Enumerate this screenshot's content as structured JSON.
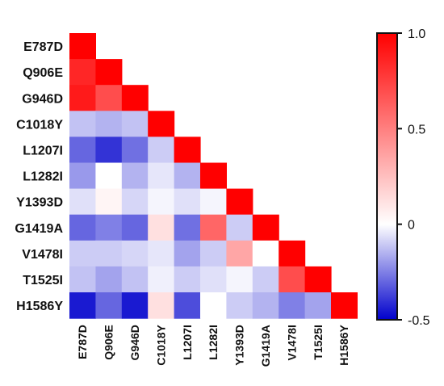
{
  "chart_data": {
    "type": "heatmap",
    "layout": "lower-triangle correlation matrix",
    "title": "",
    "xlabel": "",
    "ylabel": "",
    "labels": [
      "E787D",
      "Q906E",
      "G946D",
      "C1018Y",
      "L1207I",
      "L1282I",
      "Y1393D",
      "G1419A",
      "V1478I",
      "T1525I",
      "H1586Y"
    ],
    "values": [
      [
        1.0
      ],
      [
        0.85,
        1.0
      ],
      [
        0.9,
        0.7,
        1.0
      ],
      [
        -0.12,
        -0.15,
        -0.12,
        1.0
      ],
      [
        -0.3,
        -0.4,
        -0.28,
        -0.1,
        1.0
      ],
      [
        -0.2,
        0.0,
        -0.15,
        -0.05,
        -0.15,
        1.0
      ],
      [
        -0.06,
        0.04,
        -0.08,
        -0.02,
        -0.06,
        -0.02,
        1.0
      ],
      [
        -0.3,
        -0.25,
        -0.3,
        0.12,
        -0.28,
        0.6,
        -0.1,
        1.0
      ],
      [
        -0.1,
        -0.1,
        -0.08,
        -0.05,
        -0.18,
        -0.1,
        0.35,
        0.0,
        1.0
      ],
      [
        -0.12,
        -0.18,
        -0.12,
        -0.03,
        -0.1,
        -0.06,
        -0.02,
        -0.1,
        0.7,
        1.0
      ],
      [
        -0.45,
        -0.3,
        -0.45,
        0.12,
        -0.35,
        0.0,
        -0.1,
        -0.15,
        -0.25,
        -0.18,
        1.0
      ]
    ],
    "colorbar": {
      "min": -0.5,
      "max": 1.0,
      "ticks": [
        "1.0",
        "0.5",
        "0",
        "-0.5"
      ],
      "tick_values": [
        1.0,
        0.5,
        0,
        -0.5
      ],
      "colors": {
        "low": "#0000cc",
        "mid": "#ffffff",
        "high": "#ff0000"
      }
    }
  }
}
